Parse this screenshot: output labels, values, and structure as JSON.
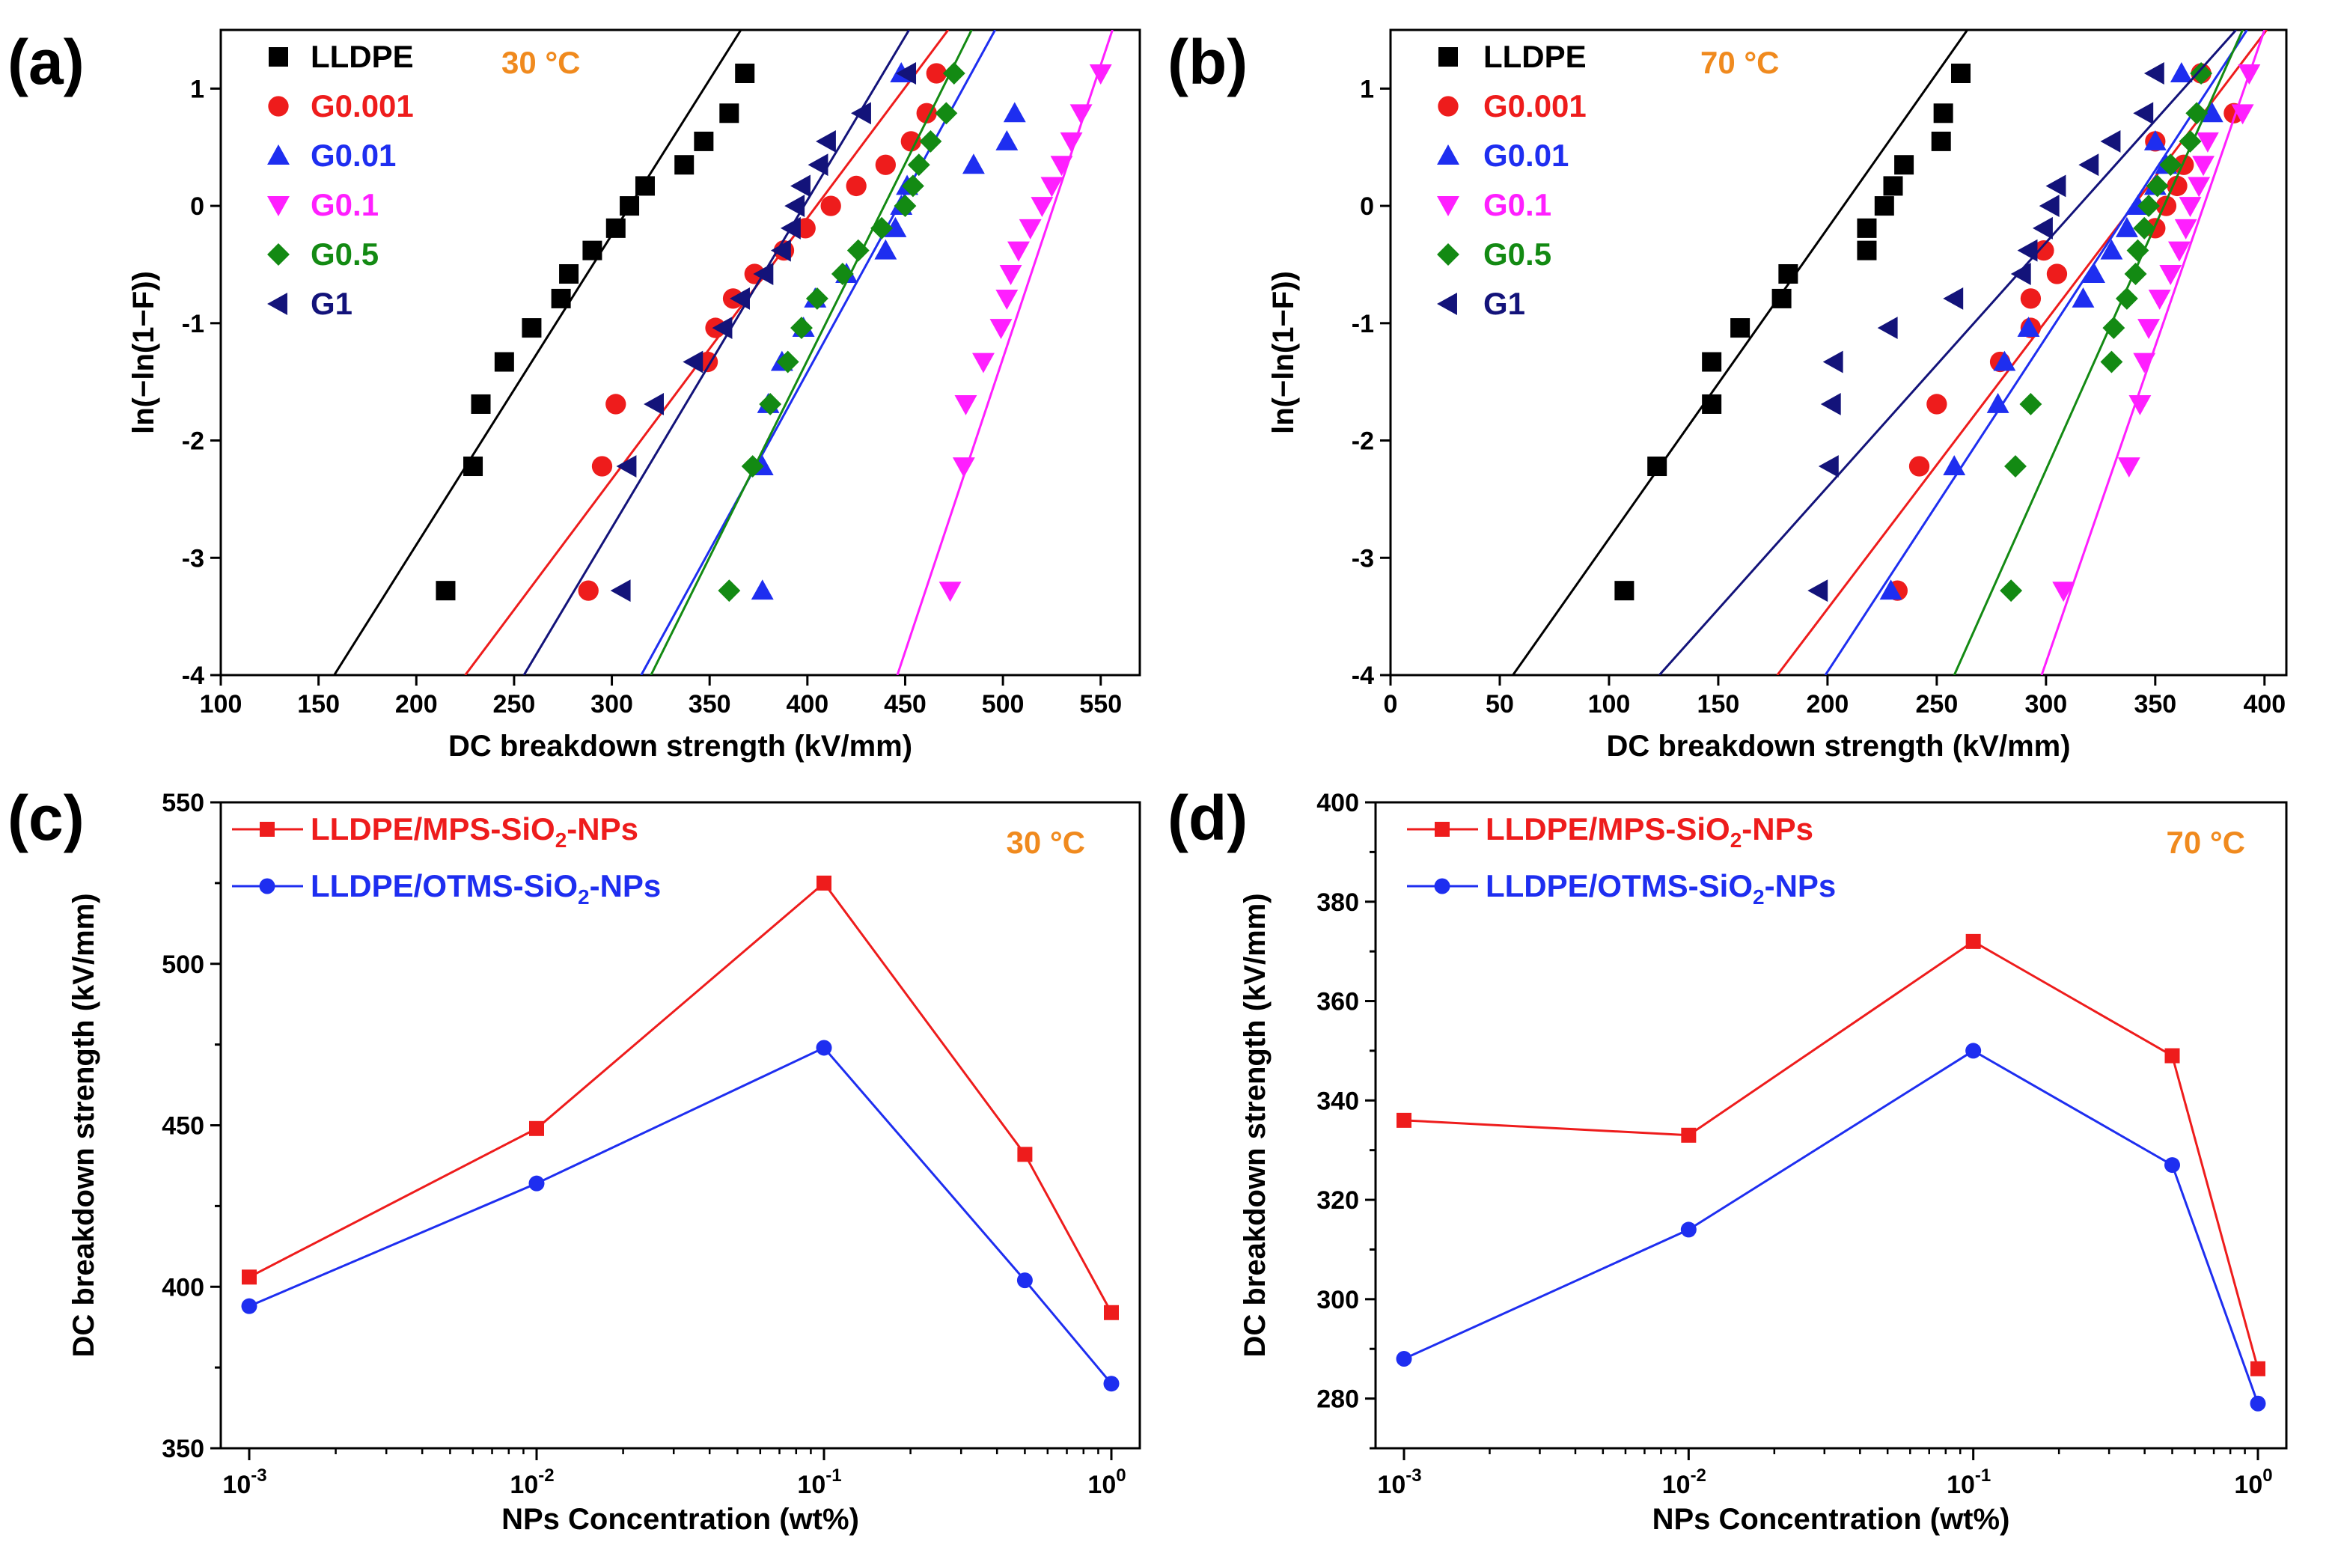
{
  "chart_data": [
    {
      "type": "scatter",
      "panel": "(a)",
      "temperature": "30 °C",
      "xlabel": "DC breakdown strength (kV/mm)",
      "ylabel": "ln(−ln(1−F))",
      "xlim": [
        100,
        570
      ],
      "ylim": [
        -4,
        1.5
      ],
      "xticks": [
        100,
        150,
        200,
        250,
        300,
        350,
        400,
        450,
        500,
        550
      ],
      "yticks": [
        -4,
        -3,
        -2,
        -1,
        0,
        1
      ],
      "y_levels": [
        -3.28,
        -2.22,
        -1.69,
        -1.33,
        -1.04,
        -0.79,
        -0.58,
        -0.38,
        -0.19,
        0.0,
        0.17,
        0.35,
        0.55,
        0.79,
        1.13
      ],
      "series": [
        {
          "name": "LLDPE",
          "color": "#000000",
          "marker": "square",
          "x": [
            215,
            229,
            233,
            245,
            259,
            274,
            278,
            290,
            302,
            309,
            317,
            337,
            347,
            360,
            368
          ],
          "fit": [
            [
              158,
              -4
            ],
            [
              366,
              1.5
            ]
          ]
        },
        {
          "name": "G0.001",
          "color": "#ee1c1c",
          "marker": "circle",
          "x": [
            288,
            295,
            302,
            349,
            353,
            362,
            373,
            388,
            399,
            412,
            425,
            440,
            453,
            461,
            466
          ],
          "fit": [
            [
              225,
              -4
            ],
            [
              472,
              1.5
            ]
          ]
        },
        {
          "name": "G0.01",
          "color": "#1e2ef0",
          "marker": "triangle-up",
          "x": [
            377,
            377,
            380,
            387,
            398,
            404,
            420,
            440,
            445,
            448,
            451,
            485,
            502,
            506,
            448
          ],
          "fit": [
            [
              315,
              -4
            ],
            [
              496,
              1.5
            ]
          ]
        },
        {
          "name": "G0.1",
          "color": "#ff1fff",
          "marker": "triangle-down",
          "x": [
            473,
            480,
            481,
            490,
            499,
            502,
            504,
            508,
            514,
            520,
            525,
            530,
            535,
            540,
            550
          ],
          "fit": [
            [
              446,
              -4
            ],
            [
              556,
              1.5
            ]
          ]
        },
        {
          "name": "G0.5",
          "color": "#138a13",
          "marker": "diamond",
          "x": [
            360,
            372,
            381,
            390,
            397,
            405,
            418,
            426,
            438,
            450,
            454,
            457,
            463,
            471,
            475
          ],
          "fit": [
            [
              320,
              -4
            ],
            [
              484,
              1.5
            ]
          ]
        },
        {
          "name": "G1",
          "color": "#13137a",
          "marker": "triangle-left",
          "x": [
            305,
            308,
            322,
            342,
            357,
            366,
            378,
            387,
            392,
            394,
            397,
            406,
            410,
            428,
            451
          ],
          "fit": [
            [
              255,
              -4
            ],
            [
              452,
              1.5
            ]
          ]
        }
      ]
    },
    {
      "type": "scatter",
      "panel": "(b)",
      "temperature": "70 °C",
      "xlabel": "DC breakdown strength (kV/mm)",
      "ylabel": "ln(−ln(1−F))",
      "xlim": [
        0,
        410
      ],
      "ylim": [
        -4,
        1.5
      ],
      "xticks": [
        0,
        50,
        100,
        150,
        200,
        250,
        300,
        350,
        400
      ],
      "yticks": [
        -4,
        -3,
        -2,
        -1,
        0,
        1
      ],
      "y_levels": [
        -3.28,
        -2.22,
        -1.69,
        -1.33,
        -1.04,
        -0.79,
        -0.58,
        -0.38,
        -0.19,
        0.0,
        0.17,
        0.35,
        0.55,
        0.79,
        1.13
      ],
      "series": [
        {
          "name": "LLDPE",
          "color": "#000000",
          "marker": "square",
          "x": [
            107,
            122,
            147,
            147,
            160,
            179,
            182,
            218,
            218,
            226,
            230,
            235,
            252,
            253,
            261
          ],
          "fit": [
            [
              56,
              -4
            ],
            [
              264,
              1.5
            ]
          ]
        },
        {
          "name": "G0.001",
          "color": "#ee1c1c",
          "marker": "circle",
          "x": [
            232,
            242,
            250,
            279,
            293,
            293,
            305,
            299,
            350,
            355,
            360,
            363,
            350,
            386,
            371
          ],
          "fit": [
            [
              177,
              -4
            ],
            [
              401,
              1.5
            ]
          ]
        },
        {
          "name": "G0.01",
          "color": "#1e2ef0",
          "marker": "triangle-up",
          "x": [
            229,
            258,
            278,
            281,
            292,
            317,
            322,
            330,
            337,
            342,
            350,
            355,
            350,
            376,
            362
          ],
          "fit": [
            [
              199,
              -4
            ],
            [
              392,
              1.5
            ]
          ]
        },
        {
          "name": "G0.1",
          "color": "#ff1fff",
          "marker": "triangle-down",
          "x": [
            308,
            338,
            343,
            345,
            347,
            352,
            357,
            361,
            364,
            366,
            370,
            372,
            374,
            390,
            393
          ],
          "fit": [
            [
              298,
              -4
            ],
            [
              400,
              1.5
            ]
          ]
        },
        {
          "name": "G0.5",
          "color": "#138a13",
          "marker": "diamond",
          "x": [
            284,
            286,
            293,
            330,
            331,
            337,
            341,
            342,
            345,
            347,
            351,
            357,
            366,
            369,
            371
          ],
          "fit": [
            [
              258,
              -4
            ],
            [
              390,
              1.5
            ]
          ]
        },
        {
          "name": "G1",
          "color": "#13137a",
          "marker": "triangle-left",
          "x": [
            196,
            201,
            202,
            203,
            228,
            258,
            289,
            292,
            299,
            302,
            305,
            320,
            330,
            345,
            350
          ],
          "fit": [
            [
              123,
              -4
            ],
            [
              387,
              1.5
            ]
          ]
        }
      ]
    },
    {
      "type": "line",
      "panel": "(c)",
      "temperature": "30 °C",
      "xlabel": "NPs Concentration (wt%)",
      "ylabel": "DC breakdown strength (kV/mm)",
      "xscale": "log",
      "xlim": [
        0.001,
        1
      ],
      "ylim": [
        350,
        550
      ],
      "xticks": [
        0.001,
        0.01,
        0.1,
        1
      ],
      "xtick_bases": [
        "10",
        "10",
        "10",
        "10"
      ],
      "xtick_exps": [
        "-3",
        "-2",
        "-1",
        "0"
      ],
      "yticks": [
        350,
        400,
        450,
        500,
        550
      ],
      "x": [
        0.001,
        0.01,
        0.1,
        0.5,
        1
      ],
      "series": [
        {
          "name_main": "LLDPE/MPS-SiO",
          "name_sub": "2",
          "name_tail": "-NPs",
          "color": "#ee1c1c",
          "marker": "square",
          "values": [
            403,
            449,
            525,
            441,
            392
          ]
        },
        {
          "name_main": "LLDPE/OTMS-SiO",
          "name_sub": "2",
          "name_tail": "-NPs",
          "color": "#1e2ef0",
          "marker": "circle",
          "values": [
            394,
            432,
            474,
            402,
            370
          ]
        }
      ]
    },
    {
      "type": "line",
      "panel": "(d)",
      "temperature": "70 °C",
      "xlabel": "NPs Concentration (wt%)",
      "ylabel": "DC breakdown strength (kV/mm)",
      "xscale": "log",
      "xlim": [
        0.001,
        1
      ],
      "ylim": [
        270,
        400
      ],
      "xticks": [
        0.001,
        0.01,
        0.1,
        1
      ],
      "xtick_bases": [
        "10",
        "10",
        "10",
        "10"
      ],
      "xtick_exps": [
        "-3",
        "-2",
        "-1",
        "0"
      ],
      "yticks": [
        280,
        300,
        320,
        340,
        360,
        380,
        400
      ],
      "x": [
        0.001,
        0.01,
        0.1,
        0.5,
        1
      ],
      "series": [
        {
          "name_main": "LLDPE/MPS-SiO",
          "name_sub": "2",
          "name_tail": "-NPs",
          "color": "#ee1c1c",
          "marker": "square",
          "values": [
            336,
            333,
            372,
            349,
            286
          ]
        },
        {
          "name_main": "LLDPE/OTMS-SiO",
          "name_sub": "2",
          "name_tail": "-NPs",
          "color": "#1e2ef0",
          "marker": "circle",
          "values": [
            288,
            314,
            350,
            327,
            279
          ]
        }
      ]
    }
  ]
}
